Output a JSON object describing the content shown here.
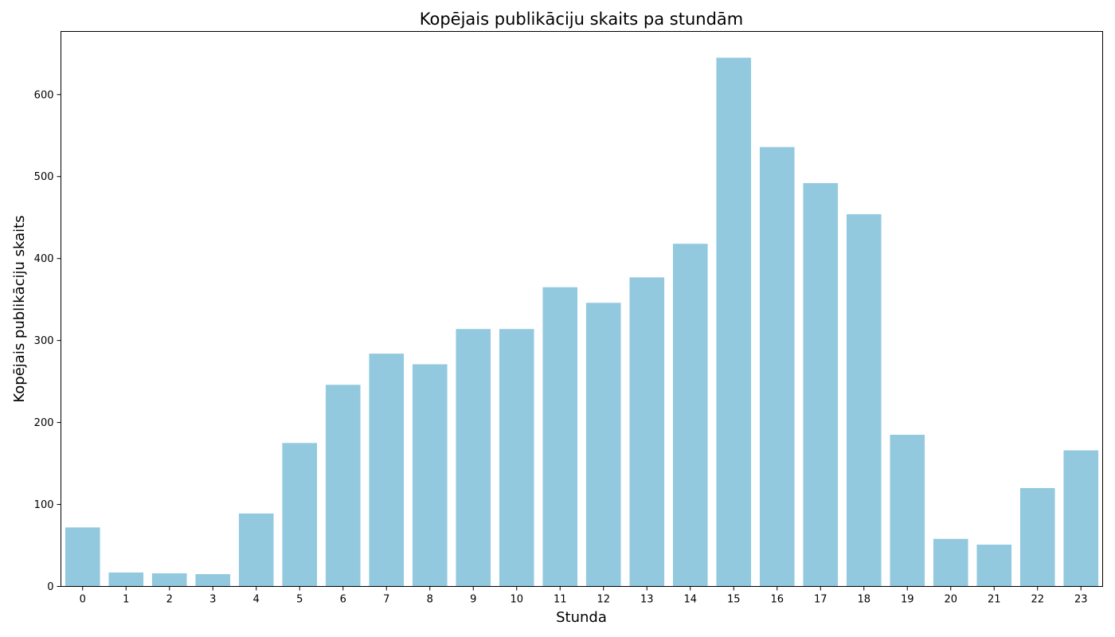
{
  "chart_data": {
    "type": "bar",
    "title": "Kopējais publikāciju skaits pa stundām",
    "xlabel": "Stunda",
    "ylabel": "Kopējais publikāciju skaits",
    "categories": [
      "0",
      "1",
      "2",
      "3",
      "4",
      "5",
      "6",
      "7",
      "8",
      "9",
      "10",
      "11",
      "12",
      "13",
      "14",
      "15",
      "16",
      "17",
      "18",
      "19",
      "20",
      "21",
      "22",
      "23"
    ],
    "values": [
      72,
      17,
      16,
      15,
      89,
      175,
      246,
      284,
      271,
      314,
      314,
      365,
      346,
      377,
      418,
      645,
      536,
      492,
      454,
      185,
      58,
      51,
      120,
      166
    ],
    "yticks": [
      0,
      100,
      200,
      300,
      400,
      500,
      600
    ],
    "ylim": [
      0,
      677
    ],
    "grid": false,
    "bar_color": "#92c9df"
  }
}
